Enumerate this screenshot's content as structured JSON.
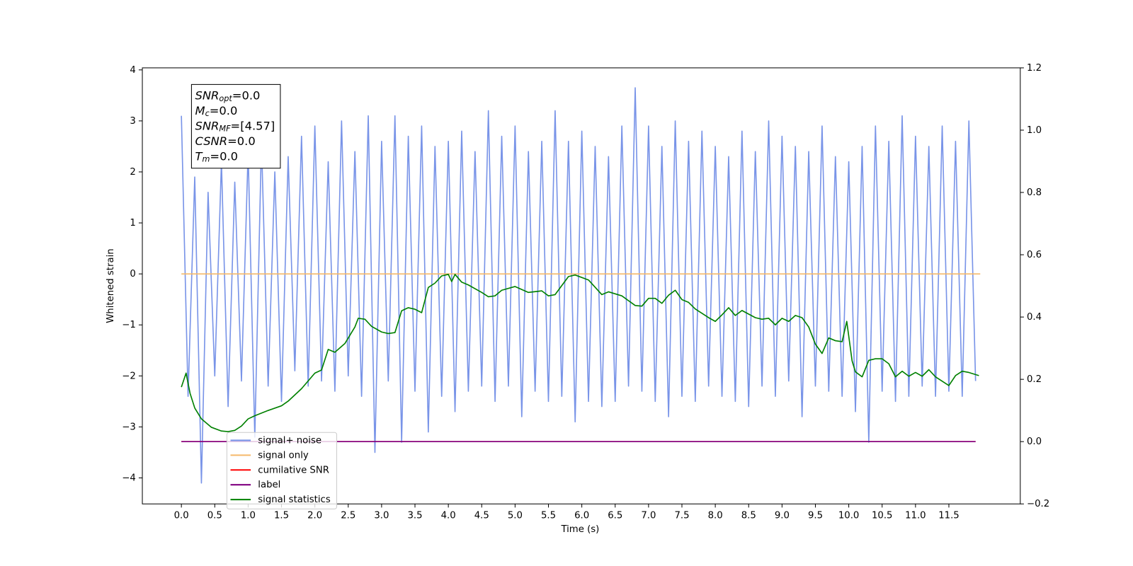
{
  "chart_data": {
    "type": "line",
    "xlabel": "Time (s)",
    "ylabel": "Whitened strain",
    "xlim": [
      -0.585,
      12.57
    ],
    "ylim": [
      -4.51,
      4.04
    ],
    "y2lim": [
      -0.2,
      1.2
    ],
    "xticks": [
      {
        "value": 0,
        "label": "0.0"
      },
      0.5,
      {
        "value": 1,
        "label": "1.0"
      },
      1.5,
      {
        "value": 2,
        "label": "2.0"
      },
      2.5,
      {
        "value": 3,
        "label": "3.0"
      },
      3.5,
      {
        "value": 4,
        "label": "4.0"
      },
      4.5,
      {
        "value": 5,
        "label": "5.0"
      },
      5.5,
      {
        "value": 6,
        "label": "6.0"
      },
      6.5,
      {
        "value": 7,
        "label": "7.0"
      },
      7.5,
      {
        "value": 8,
        "label": "8.0"
      },
      8.5,
      {
        "value": 9,
        "label": "9.0"
      },
      9.5,
      {
        "value": 10,
        "label": "10.0"
      },
      10.5,
      {
        "value": 11,
        "label": "11.0"
      },
      11.5
    ],
    "yticks": [
      {
        "value": -4,
        "label": "−4"
      },
      {
        "value": -3,
        "label": "−3"
      },
      {
        "value": -2,
        "label": "−2"
      },
      {
        "value": -1,
        "label": "−1"
      },
      0,
      1,
      2,
      3,
      4
    ],
    "y2ticks": [
      {
        "value": -0.2,
        "label": "−0.2"
      },
      {
        "value": 0,
        "label": "0.0"
      },
      0.2,
      0.4,
      0.6,
      0.8,
      {
        "value": 1,
        "label": "1.0"
      },
      1.2
    ],
    "legend_loc": "lower left",
    "annotation": [
      {
        "symbol": "SNR",
        "sub": "opt",
        "text": "=0.0"
      },
      {
        "symbol": "M",
        "sub": "c",
        "text": "=0.0"
      },
      {
        "symbol": "SNR",
        "sub": "MF",
        "text": "=[4.57]"
      },
      {
        "symbol": "CSNR",
        "text": "=0.0"
      },
      {
        "symbol": "T",
        "sub": "m",
        "text": "=0.0"
      }
    ],
    "series": [
      {
        "name": "signal+ noise",
        "color": "#7994e8",
        "x": [
          0.0,
          0.1,
          0.2,
          0.3,
          0.4,
          0.5,
          0.6,
          0.7,
          0.8,
          0.9,
          1.0,
          1.1,
          1.2,
          1.3,
          1.4,
          1.5,
          1.6,
          1.7,
          1.8,
          1.9,
          2.0,
          2.1,
          2.2,
          2.3,
          2.4,
          2.5,
          2.6,
          2.7,
          2.8,
          2.9,
          3.0,
          3.1,
          3.2,
          3.3,
          3.4,
          3.5,
          3.6,
          3.7,
          3.8,
          3.9,
          4.0,
          4.1,
          4.2,
          4.3,
          4.4,
          4.5,
          4.6,
          4.7,
          4.8,
          4.9,
          5.0,
          5.1,
          5.2,
          5.3,
          5.4,
          5.5,
          5.6,
          5.7,
          5.8,
          5.9,
          6.0,
          6.1,
          6.2,
          6.3,
          6.4,
          6.5,
          6.6,
          6.7,
          6.8,
          6.9,
          7.0,
          7.1,
          7.2,
          7.3,
          7.4,
          7.5,
          7.6,
          7.7,
          7.8,
          7.9,
          8.0,
          8.1,
          8.2,
          8.3,
          8.4,
          8.5,
          8.6,
          8.7,
          8.8,
          8.9,
          9.0,
          9.1,
          9.2,
          9.3,
          9.4,
          9.5,
          9.6,
          9.7,
          9.8,
          9.9,
          10.0,
          10.1,
          10.2,
          10.3,
          10.4,
          10.5,
          10.6,
          10.7,
          10.8,
          10.9,
          11.0,
          11.1,
          11.2,
          11.3,
          11.4,
          11.5,
          11.6,
          11.7,
          11.8,
          11.9
        ],
        "values": [
          3.1,
          -2.4,
          1.9,
          -4.1,
          1.6,
          -2.0,
          2.2,
          -2.6,
          1.8,
          -2.1,
          2.4,
          -3.2,
          2.6,
          -2.2,
          2.0,
          -2.5,
          2.3,
          -1.9,
          2.7,
          -2.2,
          2.9,
          -2.1,
          2.2,
          -2.3,
          3.0,
          -2.0,
          2.4,
          -2.4,
          3.1,
          -3.5,
          2.6,
          -2.1,
          3.1,
          -3.3,
          2.7,
          -2.3,
          2.9,
          -3.1,
          2.5,
          -2.4,
          2.6,
          -2.7,
          2.8,
          -2.3,
          2.4,
          -2.2,
          3.2,
          -2.5,
          2.7,
          -2.2,
          2.9,
          -2.8,
          2.4,
          -2.3,
          2.6,
          -2.5,
          3.2,
          -2.4,
          2.6,
          -2.9,
          2.8,
          -2.5,
          2.5,
          -2.6,
          2.3,
          -2.5,
          2.9,
          -2.2,
          3.65,
          -2.3,
          2.9,
          -2.5,
          2.5,
          -2.8,
          3.0,
          -2.4,
          2.6,
          -2.5,
          2.8,
          -2.2,
          2.5,
          -2.4,
          2.3,
          -2.5,
          2.8,
          -2.6,
          2.4,
          -2.2,
          3.0,
          -2.4,
          2.7,
          -2.1,
          2.5,
          -2.8,
          2.4,
          -2.2,
          2.9,
          -2.3,
          2.3,
          -2.4,
          2.2,
          -2.7,
          2.5,
          -3.3,
          2.9,
          -2.3,
          2.6,
          -2.5,
          3.1,
          -2.4,
          2.7,
          -2.2,
          2.5,
          -2.4,
          2.9,
          -2.3,
          2.6,
          -2.4,
          3.0,
          -2.1
        ]
      },
      {
        "name": "signal only",
        "color": "#f5b96a",
        "x": [
          0.0,
          11.97
        ],
        "values": [
          0,
          0
        ]
      },
      {
        "name": "cumilative SNR",
        "color": "red",
        "axis": "y2",
        "x": [
          0.0,
          11.9
        ],
        "values": [
          0,
          0
        ]
      },
      {
        "name": "label",
        "color": "purple",
        "axis": "y2",
        "x": [
          0.0,
          11.9
        ],
        "values": [
          0,
          0
        ]
      },
      {
        "name": "signal statistics",
        "color": "green",
        "axis": "y2",
        "x": [
          0.0,
          0.07,
          0.13,
          0.2,
          0.3,
          0.45,
          0.6,
          0.7,
          0.8,
          0.9,
          1.0,
          1.1,
          1.3,
          1.5,
          1.6,
          1.8,
          2.0,
          2.1,
          2.2,
          2.3,
          2.45,
          2.6,
          2.65,
          2.75,
          2.85,
          3.0,
          3.1,
          3.2,
          3.3,
          3.4,
          3.5,
          3.6,
          3.7,
          3.8,
          3.9,
          4.0,
          4.05,
          4.1,
          4.2,
          4.3,
          4.5,
          4.6,
          4.7,
          4.8,
          5.0,
          5.2,
          5.4,
          5.5,
          5.6,
          5.8,
          5.9,
          6.1,
          6.3,
          6.4,
          6.6,
          6.8,
          6.9,
          7.0,
          7.1,
          7.2,
          7.3,
          7.4,
          7.5,
          7.6,
          7.7,
          7.9,
          8.0,
          8.1,
          8.2,
          8.3,
          8.4,
          8.6,
          8.7,
          8.8,
          8.9,
          9.0,
          9.1,
          9.2,
          9.3,
          9.4,
          9.5,
          9.6,
          9.7,
          9.8,
          9.9,
          9.97,
          10.05,
          10.1,
          10.2,
          10.3,
          10.4,
          10.5,
          10.6,
          10.7,
          10.8,
          10.9,
          11.0,
          11.1,
          11.2,
          11.3,
          11.5,
          11.6,
          11.7,
          11.8,
          11.95
        ],
        "values": [
          0.175,
          0.22,
          0.155,
          0.108,
          0.073,
          0.046,
          0.034,
          0.032,
          0.036,
          0.05,
          0.073,
          0.083,
          0.1,
          0.115,
          0.13,
          0.17,
          0.22,
          0.23,
          0.296,
          0.287,
          0.315,
          0.368,
          0.396,
          0.393,
          0.37,
          0.352,
          0.347,
          0.35,
          0.42,
          0.43,
          0.425,
          0.414,
          0.495,
          0.509,
          0.532,
          0.537,
          0.514,
          0.537,
          0.512,
          0.503,
          0.479,
          0.465,
          0.468,
          0.486,
          0.498,
          0.479,
          0.484,
          0.468,
          0.472,
          0.53,
          0.535,
          0.519,
          0.472,
          0.481,
          0.468,
          0.437,
          0.435,
          0.46,
          0.46,
          0.444,
          0.47,
          0.486,
          0.456,
          0.447,
          0.426,
          0.398,
          0.386,
          0.407,
          0.43,
          0.405,
          0.421,
          0.398,
          0.393,
          0.396,
          0.375,
          0.396,
          0.386,
          0.405,
          0.398,
          0.368,
          0.313,
          0.283,
          0.333,
          0.324,
          0.321,
          0.386,
          0.259,
          0.224,
          0.208,
          0.261,
          0.266,
          0.266,
          0.25,
          0.208,
          0.226,
          0.21,
          0.222,
          0.21,
          0.231,
          0.208,
          0.18,
          0.212,
          0.226,
          0.222,
          0.212
        ]
      }
    ]
  }
}
